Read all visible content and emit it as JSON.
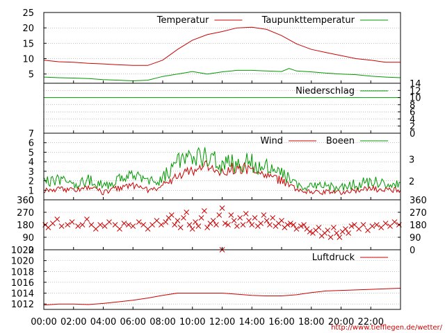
{
  "x_ticks": [
    "00:00",
    "02:00",
    "04:00",
    "06:00",
    "08:00",
    "10:00",
    "12:00",
    "14:00",
    "16:00",
    "18:00",
    "20:00",
    "22:00"
  ],
  "source_url": "http://www.tiefflegen.de/wetter/",
  "colors": {
    "primary": "#cc0000",
    "secondary": "#009900",
    "grid": "#999999",
    "axis": "#000000"
  },
  "chart_data": [
    {
      "type": "line",
      "xlabel": "",
      "ylabel": "",
      "xlim": [
        0,
        24
      ],
      "ylim": [
        2,
        25
      ],
      "y_ticks": [
        "5",
        "10",
        "15",
        "20",
        "25"
      ],
      "y_tick_values": [
        5,
        10,
        15,
        20,
        25
      ],
      "grid": true,
      "legend": "top-right",
      "series": [
        {
          "name": "Temperatur",
          "color": "#cc0000",
          "x": [
            0,
            1,
            2,
            3,
            4,
            5,
            6,
            7,
            8,
            9,
            10,
            11,
            12,
            13,
            14,
            15,
            16,
            17,
            18,
            19,
            20,
            21,
            22,
            23,
            24
          ],
          "y": [
            9.5,
            9.0,
            8.8,
            8.5,
            8.3,
            8.0,
            7.8,
            7.8,
            9.5,
            13.0,
            16.0,
            17.8,
            18.8,
            20.0,
            20.2,
            19.5,
            17.5,
            14.8,
            13.0,
            12.0,
            11.0,
            10.0,
            9.5,
            8.8,
            8.8
          ]
        },
        {
          "name": "Taupunkttemperatur",
          "color": "#009900",
          "x": [
            0,
            1,
            2,
            3,
            4,
            5,
            6,
            7,
            8,
            9,
            10,
            11,
            12,
            13,
            14,
            15,
            16,
            16.5,
            17,
            18,
            19,
            20,
            21,
            22,
            23,
            24
          ],
          "y": [
            4.0,
            3.8,
            3.7,
            3.5,
            3.2,
            3.0,
            2.8,
            3.0,
            4.2,
            5.0,
            5.8,
            5.0,
            5.7,
            6.2,
            6.2,
            6.0,
            5.8,
            6.8,
            6.0,
            5.7,
            5.3,
            5.0,
            4.8,
            4.3,
            4.0,
            3.8
          ]
        }
      ]
    },
    {
      "type": "line",
      "xlabel": "",
      "ylabel": "",
      "xlim": [
        0,
        24
      ],
      "ylim": [
        0,
        14
      ],
      "y_ticks": [
        "0",
        "2",
        "4",
        "6",
        "8",
        "10",
        "12",
        "14"
      ],
      "y_tick_values": [
        0,
        2,
        4,
        6,
        8,
        10,
        12,
        14
      ],
      "grid": true,
      "legend": "top-right",
      "series": [
        {
          "name": "Niederschlag",
          "color": "#009900",
          "x": [
            0,
            24
          ],
          "y": [
            10,
            10
          ]
        }
      ]
    },
    {
      "type": "line",
      "xlabel": "",
      "ylabel": "",
      "xlim": [
        0,
        24
      ],
      "ylim": [
        0,
        7
      ],
      "y_ticks": [
        "0",
        "1",
        "2",
        "3",
        "4",
        "5",
        "6",
        "7"
      ],
      "y_tick_values": [
        0,
        1,
        2,
        3,
        4,
        5,
        6,
        7
      ],
      "secondary_y_ticks": [
        "2",
        "3"
      ],
      "secondary_y_tick_values": [
        1.97,
        4.27
      ],
      "grid": true,
      "legend": "top-right",
      "series": [
        {
          "name": "Wind",
          "color": "#cc0000",
          "x": [
            0,
            1,
            2,
            3,
            4,
            5,
            6,
            7,
            8,
            9,
            10,
            11,
            12,
            13,
            14,
            15,
            16,
            17,
            18,
            19,
            20,
            21,
            22,
            23,
            24
          ],
          "y": [
            1.0,
            1.2,
            1.0,
            1.3,
            0.8,
            1.2,
            1.5,
            1.0,
            1.5,
            2.5,
            3.0,
            3.5,
            2.8,
            3.5,
            3.0,
            2.5,
            2.0,
            1.0,
            0.8,
            0.8,
            0.8,
            1.0,
            1.2,
            1.0,
            1.0
          ]
        },
        {
          "name": "Boeen",
          "color": "#009900",
          "x": [
            0,
            1,
            2,
            3,
            4,
            5,
            6,
            7,
            8,
            9,
            10,
            11,
            12,
            13,
            14,
            15,
            16,
            17,
            18,
            19,
            20,
            21,
            22,
            23,
            24
          ],
          "y": [
            1.8,
            2.0,
            1.8,
            2.0,
            1.5,
            2.0,
            2.5,
            1.8,
            2.3,
            3.8,
            4.5,
            4.8,
            3.5,
            4.0,
            3.8,
            3.3,
            2.7,
            1.5,
            1.3,
            1.4,
            1.4,
            1.6,
            2.0,
            1.8,
            1.8
          ]
        }
      ]
    },
    {
      "type": "scatter",
      "xlabel": "",
      "ylabel": "",
      "xlim": [
        0,
        24
      ],
      "ylim": [
        0,
        360
      ],
      "y_ticks": [
        "0",
        "90",
        "180",
        "270",
        "360"
      ],
      "y_tick_values": [
        0,
        90,
        180,
        270,
        360
      ],
      "grid": true,
      "marker": "x",
      "series": [
        {
          "color": "#cc0000",
          "x": [
            0.1,
            0.3,
            0.6,
            0.9,
            1.2,
            1.6,
            1.9,
            2.3,
            2.6,
            2.9,
            3.2,
            3.5,
            3.8,
            4.1,
            4.4,
            4.8,
            5.1,
            5.4,
            5.7,
            6.0,
            6.4,
            6.7,
            7.0,
            7.3,
            7.6,
            7.9,
            8.2,
            8.4,
            8.6,
            8.8,
            9.0,
            9.2,
            9.4,
            9.6,
            9.8,
            10.0,
            10.2,
            10.4,
            10.6,
            10.8,
            11.0,
            11.2,
            11.4,
            11.6,
            11.8,
            12.0,
            12.0,
            12.2,
            12.4,
            12.6,
            12.8,
            13.0,
            13.2,
            13.4,
            13.6,
            13.8,
            14.0,
            14.2,
            14.4,
            14.6,
            14.8,
            15.0,
            15.2,
            15.4,
            15.6,
            15.8,
            16.0,
            16.2,
            16.4,
            16.6,
            16.8,
            17.0,
            17.3,
            17.5,
            17.7,
            17.9,
            18.1,
            18.3,
            18.5,
            18.7,
            18.9,
            19.1,
            19.3,
            19.5,
            19.7,
            19.9,
            20.1,
            20.3,
            20.5,
            20.7,
            20.9,
            21.2,
            21.5,
            21.8,
            22.1,
            22.4,
            22.7,
            23.0,
            23.3,
            23.6,
            23.9
          ],
          "y": [
            180,
            160,
            190,
            220,
            170,
            180,
            200,
            170,
            180,
            220,
            180,
            150,
            180,
            170,
            200,
            180,
            150,
            190,
            180,
            170,
            200,
            180,
            150,
            180,
            210,
            180,
            200,
            230,
            250,
            180,
            210,
            160,
            230,
            270,
            180,
            150,
            200,
            170,
            230,
            280,
            160,
            190,
            210,
            180,
            250,
            300,
            0,
            190,
            180,
            250,
            210,
            170,
            230,
            180,
            260,
            210,
            180,
            230,
            170,
            190,
            250,
            210,
            180,
            230,
            170,
            190,
            210,
            160,
            180,
            190,
            180,
            150,
            170,
            180,
            150,
            130,
            120,
            140,
            160,
            100,
            120,
            140,
            90,
            160,
            120,
            90,
            130,
            150,
            120,
            170,
            180,
            150,
            180,
            140,
            170,
            180,
            160,
            190,
            170,
            200,
            180
          ]
        }
      ]
    },
    {
      "type": "line",
      "xlabel": "",
      "ylabel": "",
      "xlim": [
        0,
        24
      ],
      "ylim": [
        1011,
        1022
      ],
      "y_ticks": [
        "1012",
        "1014",
        "1016",
        "1018",
        "1020",
        "1022"
      ],
      "y_tick_values": [
        1012,
        1014,
        1016,
        1018,
        1020,
        1022
      ],
      "grid": true,
      "legend": "top-right",
      "series": [
        {
          "name": "Luftdruck",
          "color": "#cc0000",
          "x": [
            0,
            1,
            2,
            3,
            4,
            5,
            6,
            7,
            8,
            9,
            10,
            11,
            12,
            13,
            14,
            15,
            16,
            17,
            18,
            19,
            20,
            21,
            22,
            23,
            24
          ],
          "y": [
            1011.8,
            1012.0,
            1012.0,
            1011.9,
            1012.1,
            1012.4,
            1012.7,
            1013.1,
            1013.6,
            1014.0,
            1014.0,
            1014.0,
            1014.0,
            1013.8,
            1013.6,
            1013.5,
            1013.5,
            1013.7,
            1014.1,
            1014.4,
            1014.5,
            1014.6,
            1014.7,
            1014.8,
            1014.9
          ]
        }
      ]
    }
  ]
}
